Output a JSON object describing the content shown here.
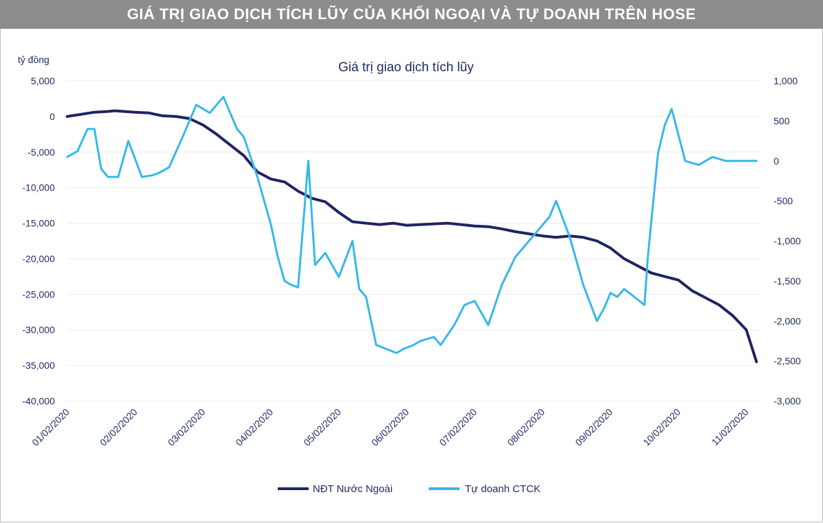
{
  "banner": "GIÁ TRỊ GIAO DỊCH TÍCH LŨY CỦA KHỐI NGOẠI VÀ TỰ DOANH TRÊN HOSE",
  "chart_data": {
    "type": "line",
    "title": "Giá trị giao dịch tích lũy",
    "ylabel": "tỷ đồng",
    "ylim": [
      -40000,
      5000
    ],
    "y_ticks": [
      5000,
      0,
      -5000,
      -10000,
      -15000,
      -20000,
      -25000,
      -30000,
      -35000,
      -40000
    ],
    "y_tick_labels": [
      "5,000",
      "0",
      "-5,000",
      "-10,000",
      "-15,000",
      "-20,000",
      "-25,000",
      "-30,000",
      "-35,000",
      "-40,000"
    ],
    "y2lim": [
      -3000,
      1000
    ],
    "y2_ticks": [
      1000,
      500,
      0,
      -500,
      -1000,
      -1500,
      -2000,
      -2500,
      -3000
    ],
    "y2_tick_labels": [
      "1,000",
      "500",
      "0",
      "-500",
      "-1,000",
      "-1,500",
      "-2,000",
      "-2,500",
      "-3,000"
    ],
    "xlim": [
      0,
      10.2
    ],
    "x_tick_labels": [
      "01/02/2020",
      "02/02/2020",
      "03/02/2020",
      "04/02/2020",
      "05/02/2020",
      "06/02/2020",
      "07/02/2020",
      "08/02/2020",
      "09/02/2020",
      "10/02/2020",
      "11/02/2020"
    ],
    "grid": true,
    "legend_position": "bottom",
    "series": [
      {
        "name": "NĐT Nước Ngoài",
        "axis": "left",
        "color": "#1e2461",
        "x": [
          0,
          0.2,
          0.4,
          0.6,
          0.7,
          1.0,
          1.2,
          1.4,
          1.6,
          1.8,
          2.0,
          2.2,
          2.4,
          2.6,
          2.8,
          3.0,
          3.2,
          3.4,
          3.6,
          3.8,
          4.0,
          4.2,
          4.4,
          4.6,
          4.8,
          5.0,
          5.2,
          5.4,
          5.6,
          5.8,
          6.0,
          6.2,
          6.4,
          6.6,
          6.8,
          7.0,
          7.2,
          7.4,
          7.6,
          7.8,
          8.0,
          8.2,
          8.4,
          8.6,
          8.8,
          9.0,
          9.2,
          9.4,
          9.6,
          9.8,
          10.0,
          10.1,
          10.15
        ],
        "y": [
          0,
          300,
          600,
          700,
          800,
          600,
          500,
          100,
          0,
          -300,
          -1200,
          -2500,
          -4000,
          -5500,
          -7800,
          -8800,
          -9200,
          -10500,
          -11500,
          -12000,
          -13500,
          -14800,
          -15000,
          -15200,
          -15000,
          -15300,
          -15200,
          -15100,
          -15000,
          -15200,
          -15400,
          -15500,
          -15800,
          -16200,
          -16500,
          -16800,
          -17000,
          -16800,
          -17000,
          -17500,
          -18500,
          -20000,
          -21000,
          -22000,
          -22500,
          -23000,
          -24500,
          -25500,
          -26500,
          -28000,
          -30000,
          -33000,
          -34500
        ]
      },
      {
        "name": "Tự doanh CTCK",
        "axis": "right",
        "color": "#35b8e8",
        "x": [
          0,
          0.15,
          0.3,
          0.4,
          0.5,
          0.6,
          0.75,
          0.9,
          1.1,
          1.25,
          1.35,
          1.5,
          1.7,
          1.9,
          2.1,
          2.3,
          2.5,
          2.6,
          2.8,
          3.0,
          3.1,
          3.2,
          3.3,
          3.4,
          3.55,
          3.65,
          3.8,
          4.0,
          4.2,
          4.3,
          4.4,
          4.5,
          4.55,
          4.7,
          4.85,
          4.95,
          5.1,
          5.2,
          5.4,
          5.5,
          5.7,
          5.85,
          6.0,
          6.2,
          6.4,
          6.6,
          6.8,
          6.9,
          7.1,
          7.2,
          7.4,
          7.6,
          7.8,
          7.9,
          8.0,
          8.1,
          8.2,
          8.35,
          8.5,
          8.55,
          8.7,
          8.8,
          8.9,
          9.1,
          9.3,
          9.5,
          9.7,
          9.8,
          9.9,
          10.0,
          10.05,
          10.1,
          10.15
        ],
        "y": [
          50,
          120,
          400,
          400,
          -100,
          -200,
          -200,
          250,
          -200,
          -180,
          -150,
          -80,
          300,
          700,
          600,
          800,
          400,
          300,
          -200,
          -800,
          -1200,
          -1500,
          -1550,
          -1580,
          0,
          -1300,
          -1150,
          -1450,
          -1000,
          -1600,
          -1700,
          -2100,
          -2300,
          -2350,
          -2400,
          -2350,
          -2300,
          -2250,
          -2200,
          -2300,
          -2050,
          -1800,
          -1750,
          -2050,
          -1550,
          -1200,
          -1000,
          -900,
          -700,
          -500,
          -950,
          -1550,
          -2000,
          -1850,
          -1650,
          -1700,
          -1600,
          -1700,
          -1800,
          -1200,
          100,
          450,
          650,
          0,
          -50,
          50,
          0,
          0,
          0,
          0,
          0,
          0,
          0
        ]
      }
    ]
  }
}
